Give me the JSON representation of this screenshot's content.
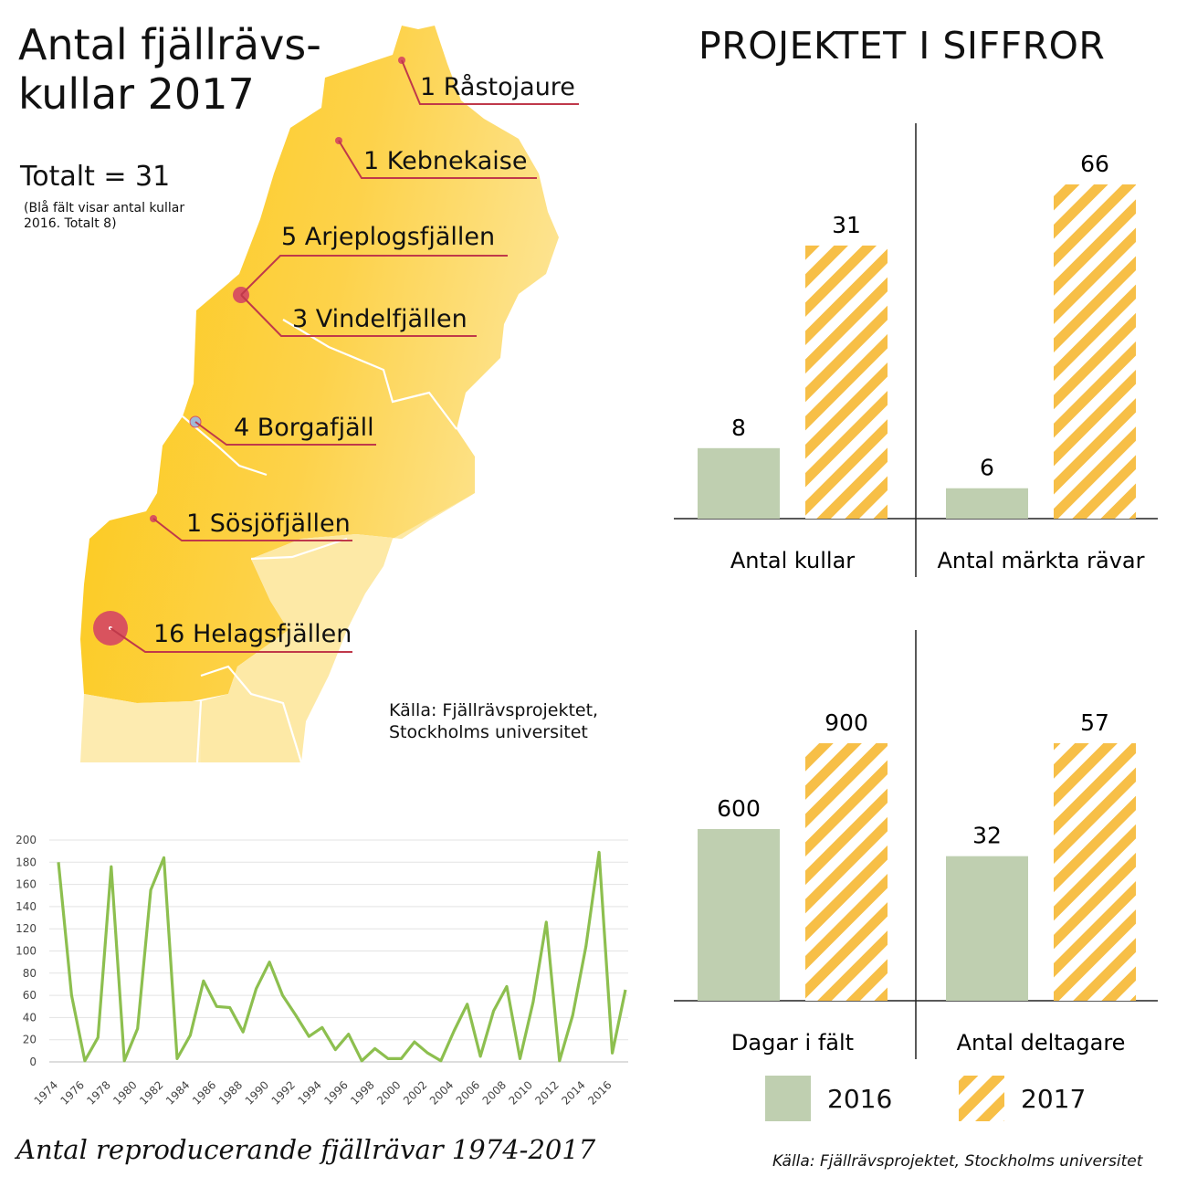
{
  "map": {
    "title_line1": "Antal fjällrävs-",
    "title_line2": "kullar 2017",
    "total": "Totalt = 31",
    "note": "(Blå fält visar antal kullar 2016. Totalt 8)",
    "source_line1": "Källa: Fjällrävsprojektet,",
    "source_line2": "Stockholms universitet",
    "regions": [
      {
        "label": "1 Råstojaure",
        "kullar": 1
      },
      {
        "label": "1 Kebnekaise",
        "kullar": 1
      },
      {
        "label": "5 Arjeplogsfjällen",
        "kullar": 5
      },
      {
        "label": "3 Vindelfjällen",
        "kullar": 3
      },
      {
        "label": "4 Borgafjäll",
        "kullar": 4
      },
      {
        "label": "1 Sösjöfjällen",
        "kullar": 1
      },
      {
        "label": "16 Helagsfjällen",
        "kullar": 16
      }
    ],
    "colors": {
      "land": "#fccb1d",
      "land_light": "#fde9a6",
      "marker": "#d9535e",
      "leader": "#c0394a"
    }
  },
  "right": {
    "title": "PROJEKTET I SIFFROR",
    "source": "Källa: Fjällrävsprojektet, Stockholms universitet",
    "legend": [
      {
        "label": "2016",
        "color": "#bfcfb0",
        "pattern": "solid"
      },
      {
        "label": "2017",
        "color": "#f7bf47",
        "pattern": "striped"
      }
    ]
  },
  "line": {
    "caption": "Antal reproducerande fjällrävar 1974-2017",
    "color": "#8dbf4f"
  },
  "chart_data": [
    {
      "type": "bar",
      "categories": [
        "Antal kullar",
        "Antal märkta rävar"
      ],
      "series": [
        {
          "name": "2016",
          "values": [
            8,
            6
          ]
        },
        {
          "name": "2017",
          "values": [
            31,
            66
          ]
        }
      ],
      "value_labels": {
        "2016": [
          "8",
          "6"
        ],
        "2017": [
          "31",
          "66"
        ]
      }
    },
    {
      "type": "bar",
      "categories": [
        "Dagar i fält",
        "Antal deltagare"
      ],
      "series": [
        {
          "name": "2016",
          "values": [
            600,
            32
          ]
        },
        {
          "name": "2017",
          "values": [
            900,
            57
          ]
        }
      ],
      "value_labels": {
        "2016": [
          "600",
          "32"
        ],
        "2017": [
          "900",
          "57"
        ]
      }
    },
    {
      "type": "line",
      "x": [
        1974,
        1975,
        1976,
        1977,
        1978,
        1979,
        1980,
        1981,
        1982,
        1983,
        1984,
        1985,
        1986,
        1987,
        1988,
        1989,
        1990,
        1991,
        1992,
        1993,
        1994,
        1995,
        1996,
        1997,
        1998,
        1999,
        2000,
        2001,
        2002,
        2003,
        2004,
        2005,
        2006,
        2007,
        2008,
        2009,
        2010,
        2011,
        2012,
        2013,
        2014,
        2015,
        2016,
        2017
      ],
      "values": [
        180,
        60,
        1,
        22,
        176,
        1,
        30,
        155,
        184,
        3,
        24,
        73,
        50,
        49,
        27,
        66,
        90,
        60,
        42,
        23,
        31,
        11,
        25,
        1,
        12,
        3,
        3,
        18,
        8,
        1,
        28,
        52,
        5,
        46,
        68,
        3,
        54,
        126,
        1,
        42,
        104,
        189,
        8,
        65
      ],
      "ylim": [
        0,
        200
      ],
      "yticks": [
        0,
        20,
        40,
        60,
        80,
        100,
        120,
        140,
        160,
        180,
        200
      ],
      "xticks": [
        1974,
        1976,
        1978,
        1980,
        1982,
        1984,
        1986,
        1988,
        1990,
        1992,
        1994,
        1996,
        1998,
        2000,
        2002,
        2004,
        2006,
        2008,
        2010,
        2012,
        2014,
        2016
      ],
      "grid": "horizontal"
    }
  ]
}
